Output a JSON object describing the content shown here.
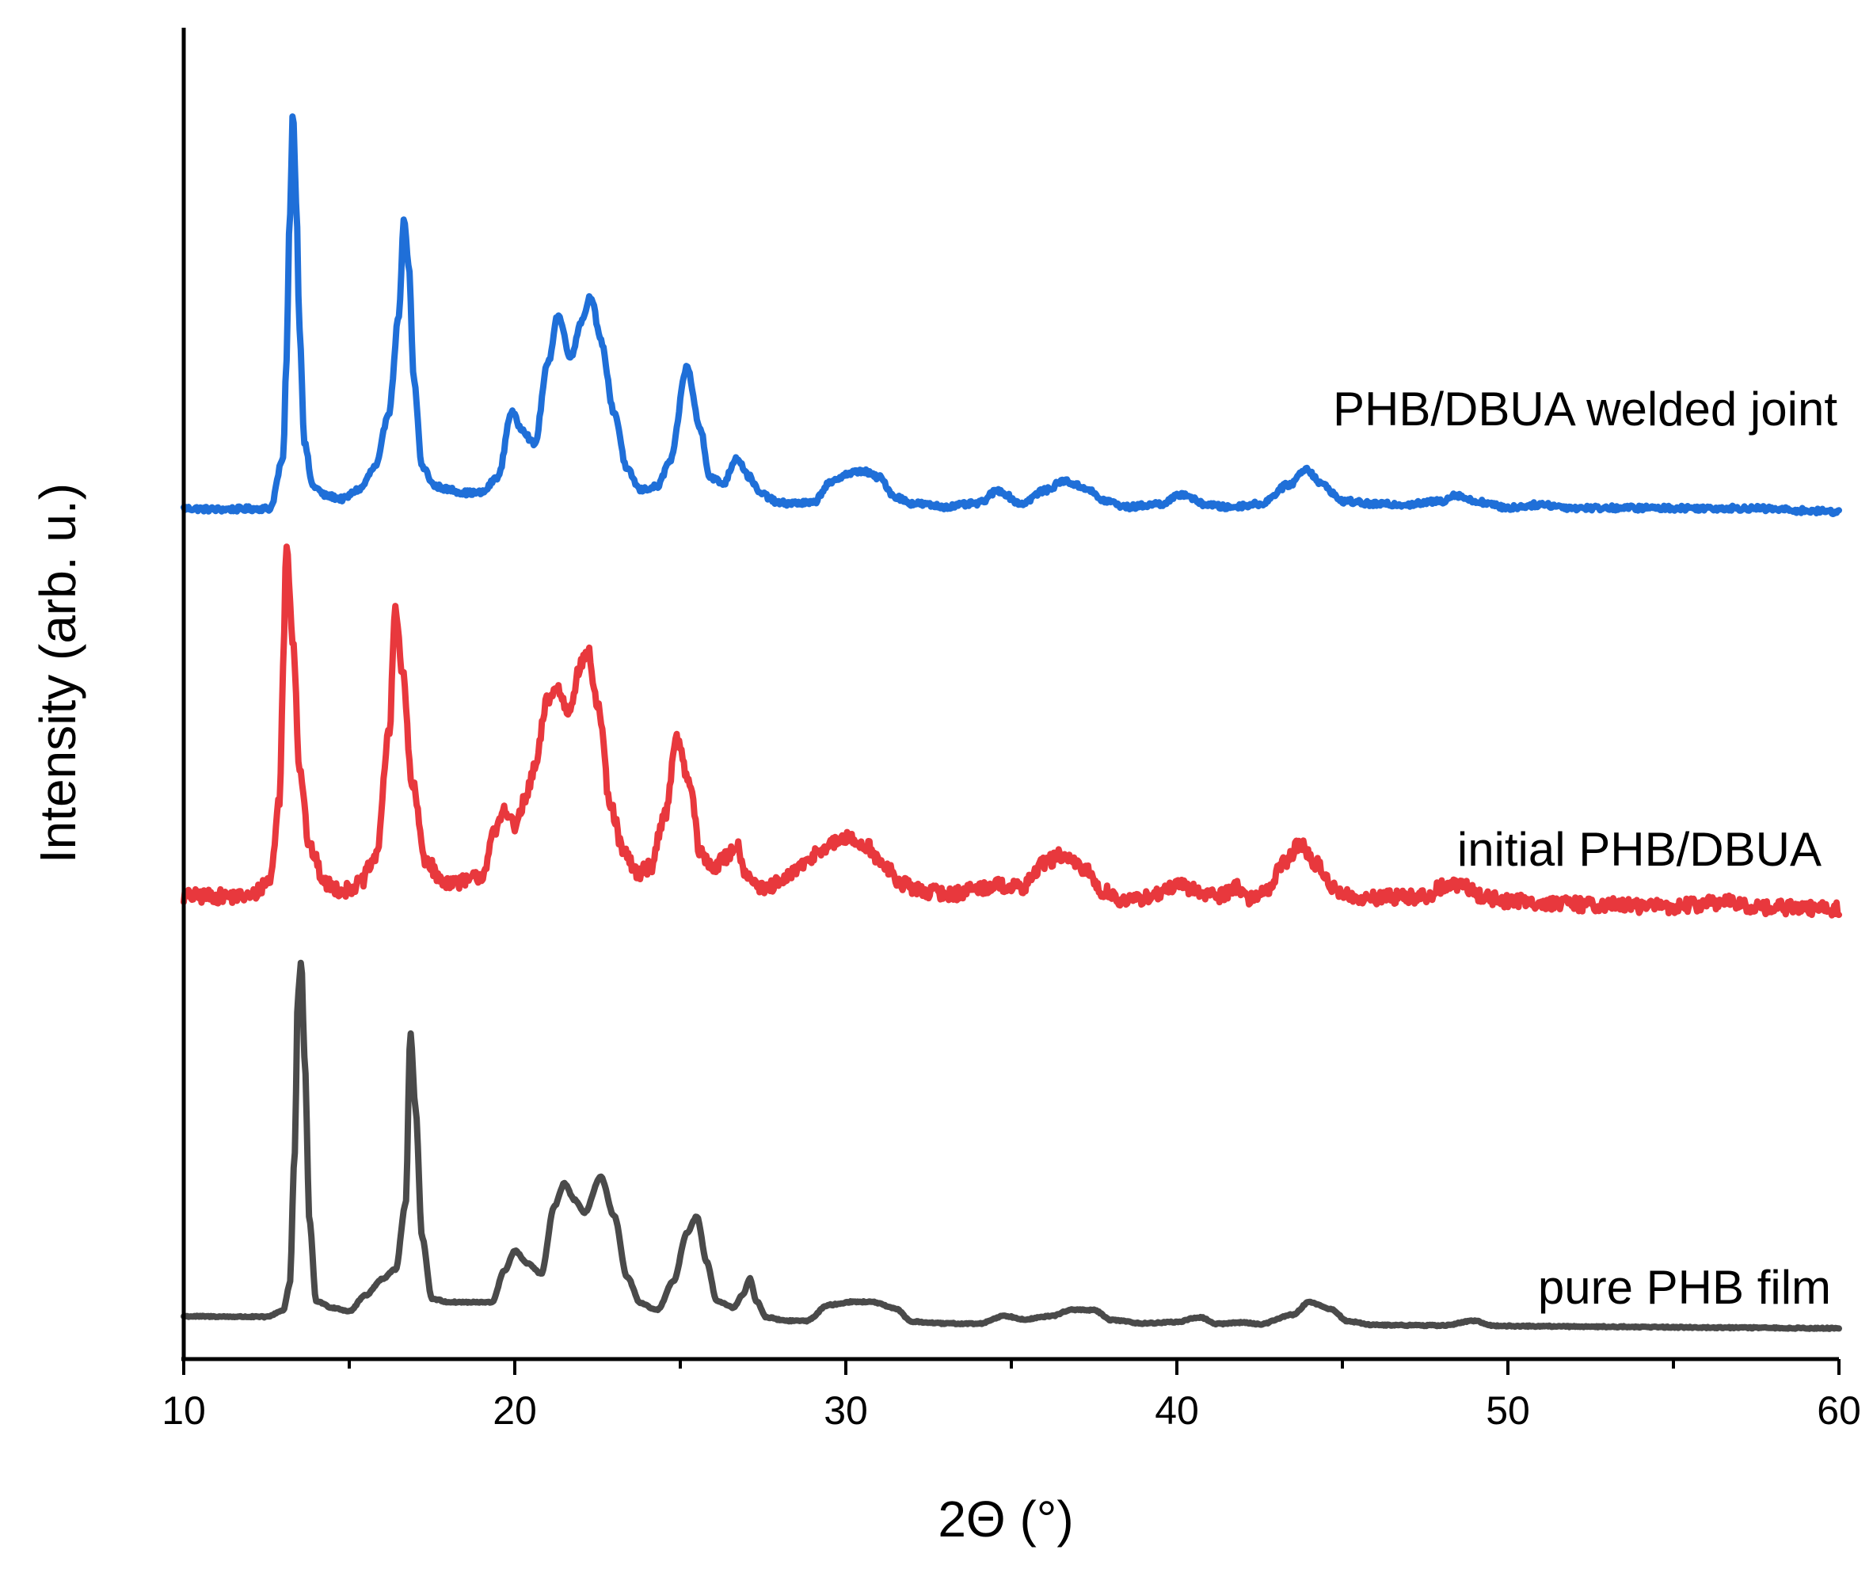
{
  "chart_data": {
    "type": "line",
    "title": "",
    "xlabel": "2Θ (°)",
    "ylabel": "Intensity (arb. u.)",
    "xlim": [
      10,
      60
    ],
    "ylim": [
      0,
      4.1
    ],
    "xticks": [
      10,
      20,
      30,
      40,
      50,
      60
    ],
    "xtick_labels": [
      "10",
      "20",
      "30",
      "40",
      "50",
      "60"
    ],
    "minor_xticks": [
      15,
      25,
      35,
      45,
      55
    ],
    "yticks": false,
    "grid": false,
    "series": [
      {
        "name": "PHB/DBUA welded joint",
        "label": "PHB/DBUA welded joint",
        "color": "#1f6fd8",
        "offset": 2.5,
        "slope": -0.0002,
        "noise": 0.008,
        "points": [
          [
            10,
            0.0
          ],
          [
            11,
            -0.003
          ],
          [
            12.6,
            0.0
          ],
          [
            13.0,
            0.15
          ],
          [
            13.1,
            0.45
          ],
          [
            13.2,
            0.9
          ],
          [
            13.3,
            1.23
          ],
          [
            13.4,
            0.95
          ],
          [
            13.5,
            0.55
          ],
          [
            13.65,
            0.2
          ],
          [
            13.9,
            0.07
          ],
          [
            14.3,
            0.04
          ],
          [
            14.8,
            0.03
          ],
          [
            15.3,
            0.06
          ],
          [
            15.8,
            0.13
          ],
          [
            16.2,
            0.3
          ],
          [
            16.5,
            0.6
          ],
          [
            16.65,
            0.89
          ],
          [
            16.8,
            0.75
          ],
          [
            16.95,
            0.4
          ],
          [
            17.2,
            0.13
          ],
          [
            17.6,
            0.07
          ],
          [
            18.0,
            0.06
          ],
          [
            18.5,
            0.05
          ],
          [
            19.0,
            0.05
          ],
          [
            19.5,
            0.1
          ],
          [
            19.9,
            0.3
          ],
          [
            20.2,
            0.25
          ],
          [
            20.6,
            0.2
          ],
          [
            21.0,
            0.45
          ],
          [
            21.3,
            0.6
          ],
          [
            21.7,
            0.47
          ],
          [
            22.0,
            0.58
          ],
          [
            22.3,
            0.66
          ],
          [
            22.6,
            0.52
          ],
          [
            23.0,
            0.3
          ],
          [
            23.4,
            0.12
          ],
          [
            23.8,
            0.06
          ],
          [
            24.3,
            0.07
          ],
          [
            24.7,
            0.15
          ],
          [
            25.2,
            0.44
          ],
          [
            25.6,
            0.25
          ],
          [
            25.9,
            0.1
          ],
          [
            26.3,
            0.08
          ],
          [
            26.7,
            0.16
          ],
          [
            27.1,
            0.1
          ],
          [
            27.4,
            0.05
          ],
          [
            28.0,
            0.02
          ],
          [
            29.0,
            0.02
          ],
          [
            29.5,
            0.08
          ],
          [
            30.0,
            0.11
          ],
          [
            30.5,
            0.12
          ],
          [
            31.0,
            0.1
          ],
          [
            31.5,
            0.04
          ],
          [
            32.0,
            0.02
          ],
          [
            33.0,
            0.01
          ],
          [
            34.0,
            0.02
          ],
          [
            34.6,
            0.06
          ],
          [
            35.3,
            0.02
          ],
          [
            36.0,
            0.06
          ],
          [
            36.6,
            0.09
          ],
          [
            37.2,
            0.07
          ],
          [
            37.8,
            0.03
          ],
          [
            38.5,
            0.01
          ],
          [
            39.5,
            0.02
          ],
          [
            40.2,
            0.05
          ],
          [
            40.8,
            0.02
          ],
          [
            41.5,
            0.01
          ],
          [
            42.5,
            0.02
          ],
          [
            43.4,
            0.08
          ],
          [
            43.9,
            0.13
          ],
          [
            44.4,
            0.08
          ],
          [
            45.0,
            0.03
          ],
          [
            46.0,
            0.02
          ],
          [
            47.0,
            0.02
          ],
          [
            48.0,
            0.03
          ],
          [
            48.4,
            0.05
          ],
          [
            49.0,
            0.03
          ],
          [
            50.0,
            0.01
          ],
          [
            51.0,
            0.02
          ],
          [
            52.0,
            0.01
          ],
          [
            55.0,
            0.01
          ],
          [
            57.0,
            0.01
          ],
          [
            60.0,
            0.0
          ]
        ]
      },
      {
        "name": "initial PHB/DBUA",
        "label": "initial PHB/DBUA",
        "color": "#e8383d",
        "offset": 1.3,
        "slope": -0.0006,
        "noise": 0.022,
        "points": [
          [
            10,
            0.0
          ],
          [
            11,
            0.0
          ],
          [
            12.0,
            0.0
          ],
          [
            12.6,
            0.05
          ],
          [
            12.9,
            0.3
          ],
          [
            13.0,
            0.7
          ],
          [
            13.1,
            1.09
          ],
          [
            13.3,
            0.8
          ],
          [
            13.5,
            0.4
          ],
          [
            13.8,
            0.15
          ],
          [
            14.3,
            0.04
          ],
          [
            14.8,
            0.02
          ],
          [
            15.3,
            0.04
          ],
          [
            15.8,
            0.12
          ],
          [
            16.2,
            0.5
          ],
          [
            16.4,
            0.9
          ],
          [
            16.6,
            0.7
          ],
          [
            16.9,
            0.35
          ],
          [
            17.3,
            0.12
          ],
          [
            17.8,
            0.05
          ],
          [
            18.5,
            0.05
          ],
          [
            19.0,
            0.07
          ],
          [
            19.4,
            0.2
          ],
          [
            19.7,
            0.28
          ],
          [
            20.0,
            0.22
          ],
          [
            20.3,
            0.3
          ],
          [
            20.6,
            0.4
          ],
          [
            21.0,
            0.62
          ],
          [
            21.3,
            0.65
          ],
          [
            21.6,
            0.58
          ],
          [
            22.0,
            0.72
          ],
          [
            22.2,
            0.77
          ],
          [
            22.5,
            0.6
          ],
          [
            22.9,
            0.28
          ],
          [
            23.3,
            0.14
          ],
          [
            23.7,
            0.08
          ],
          [
            24.1,
            0.1
          ],
          [
            24.5,
            0.25
          ],
          [
            24.9,
            0.49
          ],
          [
            25.3,
            0.35
          ],
          [
            25.6,
            0.14
          ],
          [
            26.0,
            0.1
          ],
          [
            26.4,
            0.13
          ],
          [
            26.7,
            0.17
          ],
          [
            27.0,
            0.08
          ],
          [
            27.5,
            0.03
          ],
          [
            28.0,
            0.05
          ],
          [
            28.6,
            0.1
          ],
          [
            29.3,
            0.16
          ],
          [
            30.0,
            0.19
          ],
          [
            30.6,
            0.17
          ],
          [
            31.2,
            0.1
          ],
          [
            31.7,
            0.05
          ],
          [
            32.3,
            0.03
          ],
          [
            33.2,
            0.02
          ],
          [
            34.0,
            0.04
          ],
          [
            34.6,
            0.05
          ],
          [
            35.3,
            0.04
          ],
          [
            36.0,
            0.12
          ],
          [
            36.5,
            0.14
          ],
          [
            37.2,
            0.1
          ],
          [
            37.8,
            0.03
          ],
          [
            38.5,
            0.0
          ],
          [
            39.3,
            0.02
          ],
          [
            40.0,
            0.05
          ],
          [
            40.8,
            0.03
          ],
          [
            41.3,
            0.02
          ],
          [
            41.8,
            0.05
          ],
          [
            42.2,
            0.01
          ],
          [
            42.7,
            0.04
          ],
          [
            43.3,
            0.13
          ],
          [
            43.7,
            0.18
          ],
          [
            44.2,
            0.12
          ],
          [
            44.8,
            0.04
          ],
          [
            45.5,
            0.01
          ],
          [
            46.5,
            0.02
          ],
          [
            47.5,
            0.02
          ],
          [
            48.0,
            0.05
          ],
          [
            48.6,
            0.06
          ],
          [
            49.3,
            0.02
          ],
          [
            50.0,
            0.01
          ],
          [
            52.0,
            0.0
          ],
          [
            55.0,
            -0.005
          ],
          [
            56.5,
            0.01
          ],
          [
            57.5,
            -0.005
          ],
          [
            60.0,
            -0.01
          ]
        ]
      },
      {
        "name": "pure PHB film",
        "label": "pure PHB film",
        "color": "#4a4a4a",
        "offset": 0.0,
        "slope": -0.00075,
        "noise": 0.002,
        "points": [
          [
            10,
            0.0
          ],
          [
            11,
            0.0
          ],
          [
            12.5,
            0.0
          ],
          [
            13.0,
            0.02
          ],
          [
            13.2,
            0.1
          ],
          [
            13.35,
            0.5
          ],
          [
            13.45,
            1.0
          ],
          [
            13.55,
            1.1
          ],
          [
            13.65,
            0.8
          ],
          [
            13.8,
            0.3
          ],
          [
            14.0,
            0.05
          ],
          [
            14.5,
            0.03
          ],
          [
            15.0,
            0.02
          ],
          [
            15.5,
            0.07
          ],
          [
            16.0,
            0.12
          ],
          [
            16.4,
            0.15
          ],
          [
            16.7,
            0.35
          ],
          [
            16.85,
            0.88
          ],
          [
            17.0,
            0.65
          ],
          [
            17.2,
            0.25
          ],
          [
            17.5,
            0.06
          ],
          [
            18.0,
            0.05
          ],
          [
            18.5,
            0.05
          ],
          [
            19.3,
            0.05
          ],
          [
            19.7,
            0.15
          ],
          [
            20.0,
            0.21
          ],
          [
            20.4,
            0.17
          ],
          [
            20.8,
            0.14
          ],
          [
            21.2,
            0.35
          ],
          [
            21.5,
            0.42
          ],
          [
            21.8,
            0.37
          ],
          [
            22.1,
            0.33
          ],
          [
            22.6,
            0.44
          ],
          [
            23.0,
            0.32
          ],
          [
            23.4,
            0.13
          ],
          [
            23.8,
            0.05
          ],
          [
            24.3,
            0.03
          ],
          [
            24.8,
            0.12
          ],
          [
            25.2,
            0.27
          ],
          [
            25.5,
            0.32
          ],
          [
            25.8,
            0.18
          ],
          [
            26.1,
            0.06
          ],
          [
            26.6,
            0.04
          ],
          [
            26.9,
            0.08
          ],
          [
            27.1,
            0.13
          ],
          [
            27.3,
            0.06
          ],
          [
            27.6,
            0.01
          ],
          [
            28.2,
            0.0
          ],
          [
            28.8,
            0.0
          ],
          [
            29.5,
            0.05
          ],
          [
            30.2,
            0.06
          ],
          [
            30.8,
            0.06
          ],
          [
            31.5,
            0.04
          ],
          [
            32.0,
            0.0
          ],
          [
            33.0,
            -0.005
          ],
          [
            34.0,
            -0.005
          ],
          [
            34.8,
            0.02
          ],
          [
            35.4,
            0.01
          ],
          [
            36.2,
            0.02
          ],
          [
            36.8,
            0.04
          ],
          [
            37.5,
            0.04
          ],
          [
            38.0,
            0.01
          ],
          [
            39.0,
            0.0
          ],
          [
            40.0,
            0.005
          ],
          [
            40.7,
            0.02
          ],
          [
            41.2,
            0.0
          ],
          [
            42.0,
            0.005
          ],
          [
            42.5,
            0.0
          ],
          [
            43.5,
            0.03
          ],
          [
            44.0,
            0.07
          ],
          [
            44.6,
            0.05
          ],
          [
            45.2,
            0.01
          ],
          [
            46.0,
            0.0
          ],
          [
            48.0,
            0.0
          ],
          [
            49.0,
            0.015
          ],
          [
            49.6,
            0.0
          ],
          [
            51.0,
            0.0
          ],
          [
            60.0,
            0.0
          ]
        ]
      }
    ]
  }
}
